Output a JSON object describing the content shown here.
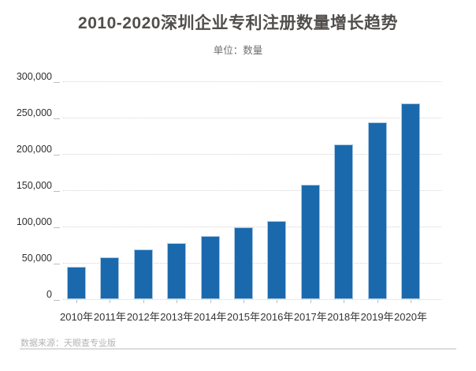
{
  "header": {
    "title": "2010-2020深圳企业专利注册数量增长趋势",
    "subtitle": "单位：数量"
  },
  "footer": {
    "source": "数据来源：天眼查专业版"
  },
  "colors": {
    "bar_fill": "#1a69ad",
    "bar_edge": "#aac8e3",
    "gridline": "#d4d4d4",
    "title_text": "#514e4c",
    "subtitle_text": "#6e6e6e",
    "axis_text": "#2e2e2e",
    "source_text": "#b3b3b3"
  },
  "chart_data": {
    "type": "bar",
    "title": "2010-2020深圳企业专利注册数量增长趋势",
    "unit_label": "单位：数量",
    "categories": [
      "2010年",
      "2011年",
      "2012年",
      "2013年",
      "2014年",
      "2015年",
      "2016年",
      "2017年",
      "2018年",
      "2019年",
      "2020年"
    ],
    "values": [
      45000,
      58000,
      68000,
      77000,
      87000,
      99000,
      108000,
      158000,
      213000,
      244000,
      270000
    ],
    "xlabel": "",
    "ylabel": "",
    "ylim": [
      0,
      300000
    ],
    "ytick_step": 50000,
    "ytick_labels": [
      "0",
      "50,000",
      "100,000",
      "150,000",
      "200,000",
      "250,000",
      "300,000"
    ],
    "grid": "horizontal-dotted",
    "legend": "none",
    "source": "数据来源：天眼查专业版"
  }
}
